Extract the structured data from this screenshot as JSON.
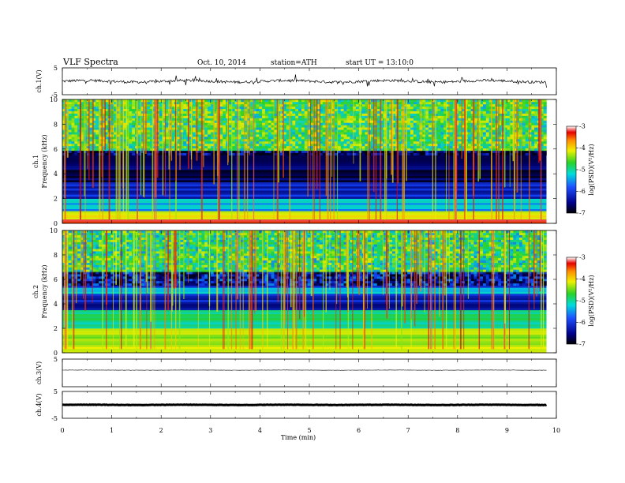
{
  "header": {
    "title": "VLF  Spectra",
    "date": "Oct. 10, 2014",
    "station": "station=ATH",
    "start": "start  UT  =   13:10:0"
  },
  "colors": {
    "background_dark": "#000033",
    "deep_blue": "#00008b",
    "blue": "#1e50ff",
    "cyan": "#00dcdc",
    "green": "#28d228",
    "yellow": "#f0f000",
    "orange": "#ff8c00",
    "red": "#e60000"
  },
  "chart_data": [
    {
      "type": "line",
      "panel": "ch1-waveform",
      "ylabel": "ch.1(V)",
      "ylim": [
        -5,
        5
      ],
      "yticks": [
        "5",
        "-5"
      ],
      "xlim": [
        0,
        10
      ],
      "series": [
        {
          "baseline": 0,
          "noise_amplitude": 1.0,
          "end_x": 9.8
        }
      ]
    },
    {
      "type": "heatmap",
      "panel": "ch1-spectrogram",
      "ylabel": "ch.1\nFrequency  (kHz)",
      "ylabel_line1": "ch.1",
      "ylabel_line2": "Frequency  (kHz)",
      "ylim": [
        0,
        10
      ],
      "yticks": [
        "0",
        "2",
        "4",
        "6",
        "8",
        "10"
      ],
      "xlim": [
        0,
        9.8
      ],
      "colorbar": {
        "label": "log(PSD)(V²/Hz)",
        "range": [
          -7,
          -3
        ],
        "ticks": [
          "-3",
          "-4",
          "-5",
          "-6",
          "-7"
        ]
      },
      "bands": [
        {
          "f0": 0.0,
          "f1": 0.4,
          "level": -3.5
        },
        {
          "f0": 0.4,
          "f1": 1.0,
          "level": -4.5
        },
        {
          "f0": 1.0,
          "f1": 2.0,
          "level": -5.8
        },
        {
          "f0": 2.0,
          "f1": 3.3,
          "level": -6.4
        },
        {
          "f0": 3.3,
          "f1": 5.8,
          "level": -6.9
        },
        {
          "f0": 5.8,
          "f1": 10.0,
          "level": -5.2
        }
      ]
    },
    {
      "type": "heatmap",
      "panel": "ch2-spectrogram",
      "ylabel_line1": "ch.2",
      "ylabel_line2": "Frequency  (kHz)",
      "ylim": [
        0,
        10
      ],
      "yticks": [
        "0",
        "2",
        "4",
        "6",
        "8",
        "10"
      ],
      "xlim": [
        0,
        9.8
      ],
      "colorbar": {
        "label": "log(PSD)(V²/Hz)",
        "range": [
          -7,
          -3
        ],
        "ticks": [
          "-3",
          "-4",
          "-5",
          "-6",
          "-7"
        ]
      },
      "bands": [
        {
          "f0": 0.0,
          "f1": 2.0,
          "level": -4.8
        },
        {
          "f0": 2.0,
          "f1": 3.5,
          "level": -5.5
        },
        {
          "f0": 3.5,
          "f1": 4.8,
          "level": -6.5
        },
        {
          "f0": 4.8,
          "f1": 5.3,
          "level": -5.8
        },
        {
          "f0": 5.3,
          "f1": 6.5,
          "level": -6.6
        },
        {
          "f0": 6.5,
          "f1": 10.0,
          "level": -5.3
        }
      ]
    },
    {
      "type": "line",
      "panel": "ch3-waveform",
      "ylabel": "ch.3(V)",
      "ylim": [
        -5,
        5
      ],
      "yticks": [
        "5"
      ],
      "xlim": [
        0,
        10
      ],
      "series": [
        {
          "baseline": 1.0,
          "noise_amplitude": 0.1,
          "end_x": 9.8
        }
      ]
    },
    {
      "type": "line",
      "panel": "ch4-waveform",
      "ylabel": "ch.4(V)",
      "ylim": [
        -5,
        5
      ],
      "yticks": [
        "5",
        "-5"
      ],
      "xlim": [
        0,
        10
      ],
      "series": [
        {
          "baseline": 0,
          "noise_amplitude": 0.15,
          "end_x": 9.8
        }
      ]
    }
  ],
  "xaxis": {
    "label": "Time  (min)",
    "ticks": [
      "0",
      "1",
      "2",
      "3",
      "4",
      "5",
      "6",
      "7",
      "8",
      "9",
      "10"
    ]
  }
}
